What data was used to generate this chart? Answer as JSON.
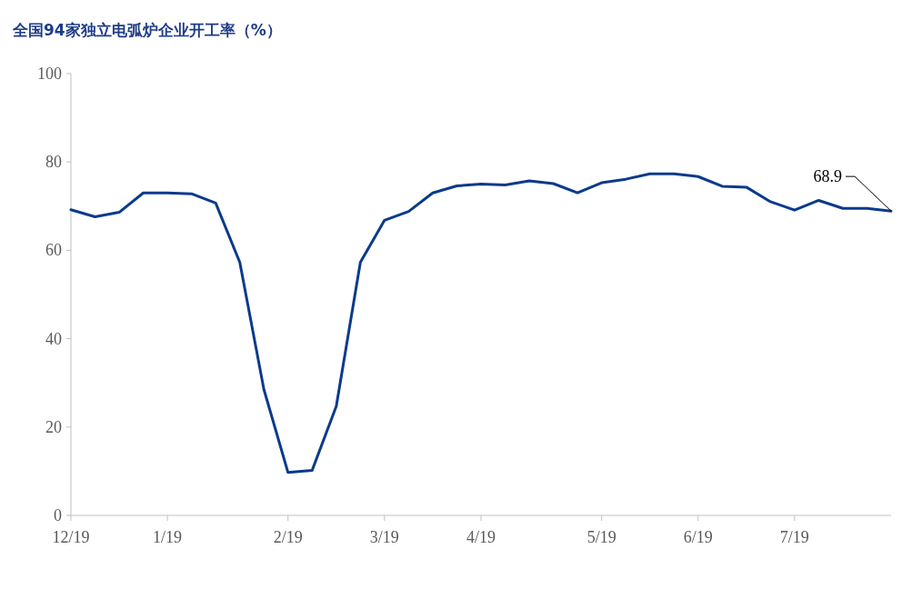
{
  "chart_data": {
    "type": "line",
    "title": "全国94家独立电弧炉企业开工率（%）",
    "categories": [
      "12/19",
      null,
      null,
      null,
      "1/19",
      null,
      null,
      null,
      null,
      "2/19",
      null,
      null,
      null,
      "3/19",
      null,
      null,
      null,
      "4/19",
      null,
      null,
      null,
      null,
      "5/19",
      null,
      null,
      null,
      "6/19",
      null,
      null,
      null,
      "7/19",
      null,
      null,
      null,
      null
    ],
    "series": [
      {
        "color": "#0b3a8c",
        "values": [
          69.2,
          67.6,
          68.6,
          73.0,
          73.0,
          72.8,
          70.7,
          57.3,
          28.5,
          9.7,
          10.2,
          24.7,
          57.3,
          66.8,
          68.8,
          73.0,
          74.6,
          75.0,
          74.8,
          75.7,
          75.1,
          73.0,
          75.3,
          76.1,
          77.3,
          77.3,
          76.7,
          74.5,
          74.3,
          71.0,
          69.1,
          71.3,
          69.5,
          69.5,
          68.9
        ],
        "value_labels": [
          null,
          null,
          null,
          null,
          null,
          null,
          null,
          null,
          null,
          null,
          null,
          null,
          null,
          null,
          null,
          null,
          null,
          null,
          null,
          null,
          null,
          null,
          null,
          null,
          null,
          null,
          null,
          null,
          null,
          null,
          null,
          null,
          null,
          null,
          "68.9"
        ]
      }
    ],
    "ylim": [
      0,
      100
    ],
    "yticks": [
      0,
      20,
      40,
      60,
      80,
      100
    ],
    "grid": false,
    "marker": "none",
    "line_style": "solid"
  }
}
